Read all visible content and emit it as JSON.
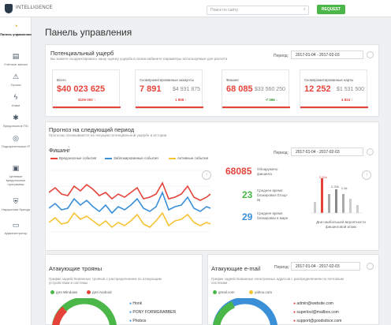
{
  "topbar": {
    "brand": "INTELLIGENCE",
    "search_placeholder": "Поиск по сайту",
    "request_label": "REQUEST"
  },
  "sidebar": {
    "items": [
      {
        "label": "Панель управления",
        "icon": "dashboard-icon"
      },
      {
        "label": "Учётные записи",
        "icon": "accounts-icon"
      },
      {
        "label": "Угрозы",
        "icon": "threats-icon"
      },
      {
        "label": "Атаки",
        "icon": "attacks-icon"
      },
      {
        "label": "Вредоносное ПО",
        "icon": "malware-icon"
      },
      {
        "label": "Подозрительные IP",
        "icon": "ip-icon"
      },
      {
        "label": "Целевые вредоносные программы",
        "icon": "targeted-malware-icon"
      },
      {
        "label": "Нарушения бренда",
        "icon": "brand-icon"
      },
      {
        "label": "Администратор",
        "icon": "admin-icon"
      }
    ]
  },
  "page_title": "Панель управления",
  "damage": {
    "title": "Потенциальный ущерб",
    "subtitle": "Вы можете скорректировать нашу оценку ущерба в своем кабинете параметры используемые для расчета",
    "period_label": "Период:",
    "period": "2017-01-04 - 2017-02-03",
    "kpis": [
      {
        "label": "Всего",
        "value": "$40 023 625",
        "prev": "",
        "delta": "$109 000 ↑",
        "delta_color": "#e5433a"
      },
      {
        "label": "Скомпрометированные аккаунты",
        "value": "7 891",
        "prev": "$4 931 875",
        "delta": "1 808 ↑",
        "delta_color": "#e5433a"
      },
      {
        "label": "Фишинг",
        "value": "68 085",
        "prev": "$33 560 250",
        "delta": "-7 366 ↓",
        "delta_color": "#3a9b3a"
      },
      {
        "label": "Скомпрометированные карты",
        "value": "12 252",
        "prev": "$1 531 500",
        "delta": "4 824 ↑",
        "delta_color": "#e5433a"
      }
    ]
  },
  "forecast": {
    "title": "Прогноз на следующий период",
    "subtitle": "Прогнозы основываются на текущем потенциальной ущербе и истории"
  },
  "phishing": {
    "title": "Фишинг",
    "title_sup": "?",
    "period_label": "Период:",
    "period": "2017-01-04 - 2017-02-03",
    "legend": [
      {
        "name": "Вредоносные события",
        "color": "#e5433a"
      },
      {
        "name": "Заблокированные события",
        "color": "#3a8fd9"
      },
      {
        "name": "Активные события",
        "color": "#f6c333"
      }
    ],
    "stats": [
      {
        "value": "68085",
        "label": "Обнаружено фишинга",
        "color": "#e5433a"
      },
      {
        "value": "23",
        "label": "Среднее время блокировки Group-IB",
        "color": "#4bb749"
      },
      {
        "value": "29",
        "label": "Среднее время блокировки в мире",
        "color": "#3a8fd9"
      }
    ],
    "bar_caption": "Дни наибольшей вероятности фишинговой атаки",
    "bar_values_shown": [
      "2.51k",
      "2.6k",
      "2.25k"
    ],
    "weekdays": [
      "пн",
      "вт",
      "ср",
      "чт",
      "пт",
      "сб",
      "вс"
    ]
  },
  "trojans": {
    "title": "Атакующие трояны",
    "subtitle": "График задействованных троянов с распределением по атакующим устройствам и системы",
    "legend": [
      "для Windows",
      "для Android"
    ],
    "items": [
      "Honk",
      "PONY FORMGRABBER",
      "Phobos"
    ]
  },
  "emails": {
    "title": "Атакующие e-mail",
    "subtitle": "График задействованных электронных адресов с распределением по почтовым системам",
    "period_label": "Период:",
    "period": "2017-01-04 - 2017-02-03",
    "legend": [
      "gmail.com",
      "yahoo.com"
    ],
    "items": [
      "admin@website.com",
      "superlool@mailbox.com",
      "support@goodsdoce.com"
    ]
  }
}
